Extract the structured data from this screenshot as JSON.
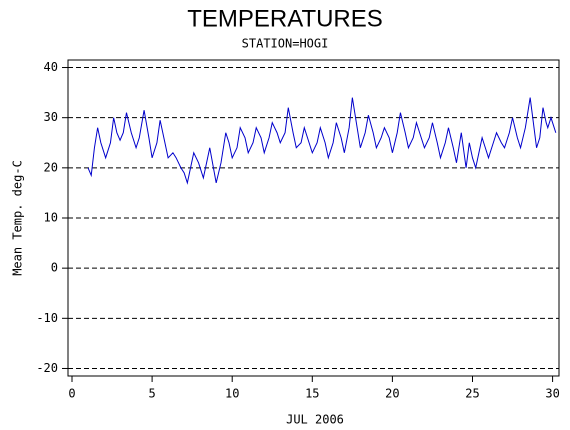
{
  "chart_data": {
    "type": "line",
    "title": "TEMPERATURES",
    "subtitle": "STATION=HOGI",
    "x_label": "JUL 2006",
    "y_label": "Mean Temp. deg-C",
    "xlim": [
      -0.25,
      30.4
    ],
    "ylim": [
      -21.5,
      41.5
    ],
    "xticks": [
      0,
      5,
      10,
      15,
      20,
      25,
      30
    ],
    "yticks": [
      -20,
      -10,
      0,
      10,
      20,
      30,
      40
    ],
    "grid": true,
    "series": [
      {
        "color": "#0000cc",
        "x": [
          1.0,
          1.2,
          1.4,
          1.6,
          1.8,
          2.1,
          2.4,
          2.6,
          2.8,
          3.0,
          3.2,
          3.4,
          3.7,
          4.0,
          4.2,
          4.5,
          4.8,
          5.0,
          5.3,
          5.5,
          5.8,
          6.0,
          6.3,
          6.5,
          6.8,
          7.0,
          7.2,
          7.6,
          7.9,
          8.2,
          8.6,
          9.0,
          9.3,
          9.6,
          9.8,
          10.0,
          10.3,
          10.5,
          10.8,
          11.0,
          11.3,
          11.5,
          11.8,
          12.0,
          12.3,
          12.5,
          12.8,
          13.0,
          13.3,
          13.5,
          13.8,
          14.0,
          14.3,
          14.5,
          14.8,
          15.0,
          15.3,
          15.5,
          15.8,
          16.0,
          16.3,
          16.5,
          16.8,
          17.0,
          17.3,
          17.5,
          17.8,
          18.0,
          18.3,
          18.5,
          18.8,
          19.0,
          19.3,
          19.5,
          19.8,
          20.0,
          20.3,
          20.5,
          20.8,
          21.0,
          21.3,
          21.5,
          21.8,
          22.0,
          22.3,
          22.5,
          22.8,
          23.0,
          23.3,
          23.5,
          23.8,
          24.0,
          24.3,
          24.6,
          24.8,
          25.0,
          25.2,
          25.4,
          25.6,
          25.8,
          26.0,
          26.3,
          26.5,
          26.8,
          27.0,
          27.3,
          27.5,
          27.8,
          28.0,
          28.3,
          28.6,
          28.8,
          29.0,
          29.2,
          29.4,
          29.6,
          29.7,
          29.9,
          30.1,
          30.2
        ],
        "values": [
          20,
          18.5,
          24,
          28,
          25,
          22,
          25,
          30,
          27,
          25.5,
          27,
          31,
          27,
          24,
          26,
          31.5,
          26,
          22,
          25,
          29.5,
          25,
          22,
          23,
          22,
          20,
          19,
          17,
          23,
          21,
          18,
          24,
          17,
          21,
          27,
          25,
          22,
          24,
          28,
          26,
          23,
          25,
          28,
          26,
          23,
          26,
          29,
          27,
          25,
          27,
          32,
          27,
          24,
          25,
          28,
          25,
          23,
          25,
          28,
          25,
          22,
          25,
          29,
          26,
          23,
          28,
          34,
          28,
          24,
          27,
          30.5,
          27,
          24,
          26,
          28,
          26,
          23,
          27,
          31,
          27,
          24,
          26,
          29,
          26,
          24,
          26,
          29,
          25,
          22,
          25,
          28,
          24,
          21,
          27,
          20,
          25,
          22,
          20,
          23,
          26,
          24,
          22,
          25,
          27,
          25,
          24,
          27,
          30,
          26,
          24,
          28,
          34,
          29,
          24,
          26,
          32,
          29,
          28,
          30,
          28,
          27
        ]
      }
    ]
  }
}
